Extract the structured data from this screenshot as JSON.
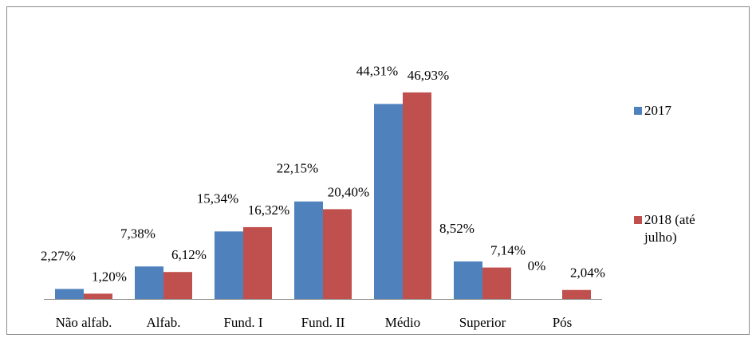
{
  "chart_data": {
    "type": "bar",
    "categories": [
      "Não alfab.",
      "Alfab.",
      "Fund. I",
      "Fund. II",
      "Médio",
      "Superior",
      "Pós"
    ],
    "series": [
      {
        "name": "2017",
        "color": "#4f81bd",
        "values": [
          2.27,
          7.38,
          15.34,
          22.15,
          44.31,
          8.52,
          0
        ],
        "value_labels": [
          "2,27%",
          "7,38%",
          "15,34%",
          "22,15%",
          "44,31%",
          "8,52%",
          "0%"
        ]
      },
      {
        "name": "2018 (até julho)",
        "color": "#c0504d",
        "values": [
          1.2,
          6.12,
          16.32,
          20.4,
          46.93,
          7.14,
          2.04
        ],
        "value_labels": [
          "1,20%",
          "6,12%",
          "16,32%",
          "20,40%",
          "46,93%",
          "7,14%",
          "2,04%"
        ]
      }
    ],
    "ylim": [
      0,
      50
    ],
    "legend": "right"
  }
}
